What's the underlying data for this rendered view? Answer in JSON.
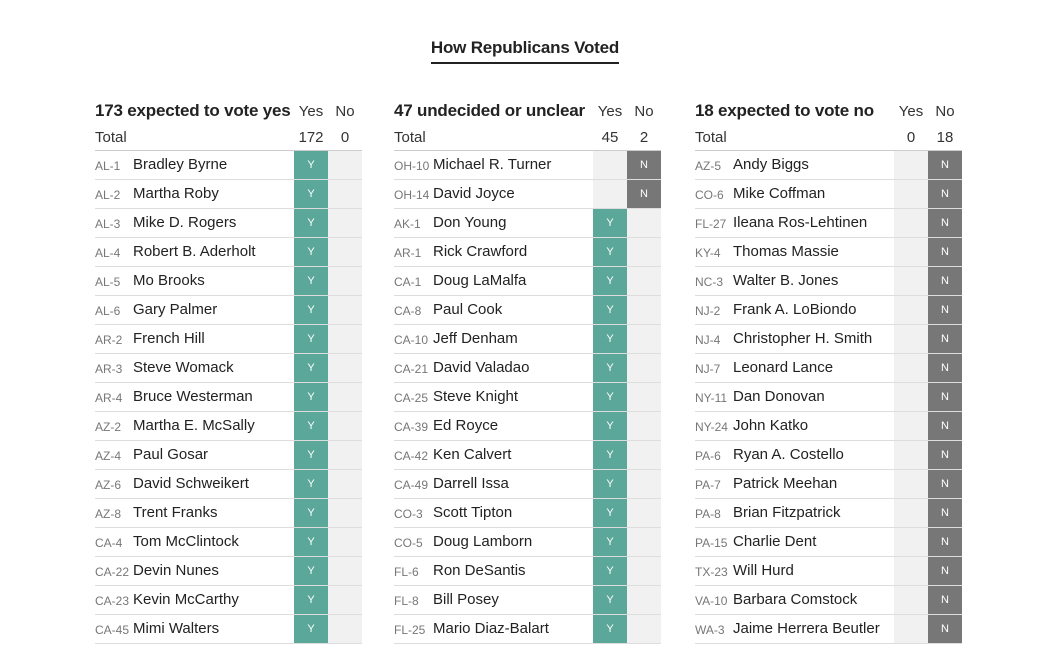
{
  "title": "How Republicans Voted",
  "columns": [
    {
      "title": "173 expected to vote yes",
      "yes_label": "Yes",
      "no_label": "No",
      "total_label": "Total",
      "total_yes": "172",
      "total_no": "0",
      "rows": [
        {
          "district": "AL-1",
          "name": "Bradley Byrne",
          "vote": "Y"
        },
        {
          "district": "AL-2",
          "name": "Martha Roby",
          "vote": "Y"
        },
        {
          "district": "AL-3",
          "name": "Mike D. Rogers",
          "vote": "Y"
        },
        {
          "district": "AL-4",
          "name": "Robert B. Aderholt",
          "vote": "Y"
        },
        {
          "district": "AL-5",
          "name": "Mo Brooks",
          "vote": "Y"
        },
        {
          "district": "AL-6",
          "name": "Gary Palmer",
          "vote": "Y"
        },
        {
          "district": "AR-2",
          "name": "French Hill",
          "vote": "Y"
        },
        {
          "district": "AR-3",
          "name": "Steve Womack",
          "vote": "Y"
        },
        {
          "district": "AR-4",
          "name": "Bruce Westerman",
          "vote": "Y"
        },
        {
          "district": "AZ-2",
          "name": "Martha E. McSally",
          "vote": "Y"
        },
        {
          "district": "AZ-4",
          "name": "Paul Gosar",
          "vote": "Y"
        },
        {
          "district": "AZ-6",
          "name": "David Schweikert",
          "vote": "Y"
        },
        {
          "district": "AZ-8",
          "name": "Trent Franks",
          "vote": "Y"
        },
        {
          "district": "CA-4",
          "name": "Tom McClintock",
          "vote": "Y"
        },
        {
          "district": "CA-22",
          "name": "Devin Nunes",
          "vote": "Y"
        },
        {
          "district": "CA-23",
          "name": "Kevin McCarthy",
          "vote": "Y"
        },
        {
          "district": "CA-45",
          "name": "Mimi Walters",
          "vote": "Y"
        }
      ]
    },
    {
      "title": "47 undecided or unclear",
      "yes_label": "Yes",
      "no_label": "No",
      "total_label": "Total",
      "total_yes": "45",
      "total_no": "2",
      "rows": [
        {
          "district": "OH-10",
          "name": "Michael R. Turner",
          "vote": "N"
        },
        {
          "district": "OH-14",
          "name": "David Joyce",
          "vote": "N"
        },
        {
          "district": "AK-1",
          "name": "Don Young",
          "vote": "Y"
        },
        {
          "district": "AR-1",
          "name": "Rick Crawford",
          "vote": "Y"
        },
        {
          "district": "CA-1",
          "name": "Doug LaMalfa",
          "vote": "Y"
        },
        {
          "district": "CA-8",
          "name": "Paul Cook",
          "vote": "Y"
        },
        {
          "district": "CA-10",
          "name": "Jeff Denham",
          "vote": "Y"
        },
        {
          "district": "CA-21",
          "name": "David Valadao",
          "vote": "Y"
        },
        {
          "district": "CA-25",
          "name": "Steve Knight",
          "vote": "Y"
        },
        {
          "district": "CA-39",
          "name": "Ed Royce",
          "vote": "Y"
        },
        {
          "district": "CA-42",
          "name": "Ken Calvert",
          "vote": "Y"
        },
        {
          "district": "CA-49",
          "name": "Darrell Issa",
          "vote": "Y"
        },
        {
          "district": "CO-3",
          "name": "Scott Tipton",
          "vote": "Y"
        },
        {
          "district": "CO-5",
          "name": "Doug Lamborn",
          "vote": "Y"
        },
        {
          "district": "FL-6",
          "name": "Ron DeSantis",
          "vote": "Y"
        },
        {
          "district": "FL-8",
          "name": "Bill Posey",
          "vote": "Y"
        },
        {
          "district": "FL-25",
          "name": "Mario Diaz-Balart",
          "vote": "Y"
        }
      ]
    },
    {
      "title": "18 expected to vote no",
      "yes_label": "Yes",
      "no_label": "No",
      "total_label": "Total",
      "total_yes": "0",
      "total_no": "18",
      "rows": [
        {
          "district": "AZ-5",
          "name": "Andy Biggs",
          "vote": "N"
        },
        {
          "district": "CO-6",
          "name": "Mike Coffman",
          "vote": "N"
        },
        {
          "district": "FL-27",
          "name": "Ileana Ros-Lehtinen",
          "vote": "N"
        },
        {
          "district": "KY-4",
          "name": "Thomas Massie",
          "vote": "N"
        },
        {
          "district": "NC-3",
          "name": "Walter B. Jones",
          "vote": "N"
        },
        {
          "district": "NJ-2",
          "name": "Frank A. LoBiondo",
          "vote": "N"
        },
        {
          "district": "NJ-4",
          "name": "Christopher H. Smith",
          "vote": "N"
        },
        {
          "district": "NJ-7",
          "name": "Leonard Lance",
          "vote": "N"
        },
        {
          "district": "NY-11",
          "name": "Dan Donovan",
          "vote": "N"
        },
        {
          "district": "NY-24",
          "name": "John Katko",
          "vote": "N"
        },
        {
          "district": "PA-6",
          "name": "Ryan A. Costello",
          "vote": "N"
        },
        {
          "district": "PA-7",
          "name": "Patrick Meehan",
          "vote": "N"
        },
        {
          "district": "PA-8",
          "name": "Brian Fitzpatrick",
          "vote": "N"
        },
        {
          "district": "PA-15",
          "name": "Charlie Dent",
          "vote": "N"
        },
        {
          "district": "TX-23",
          "name": "Will Hurd",
          "vote": "N"
        },
        {
          "district": "VA-10",
          "name": "Barbara Comstock",
          "vote": "N"
        },
        {
          "district": "WA-3",
          "name": "Jaime Herrera Beutler",
          "vote": "N"
        }
      ]
    }
  ],
  "colors": {
    "yes": "#5ba89a",
    "no": "#777777",
    "empty": "#f1f1f1"
  }
}
